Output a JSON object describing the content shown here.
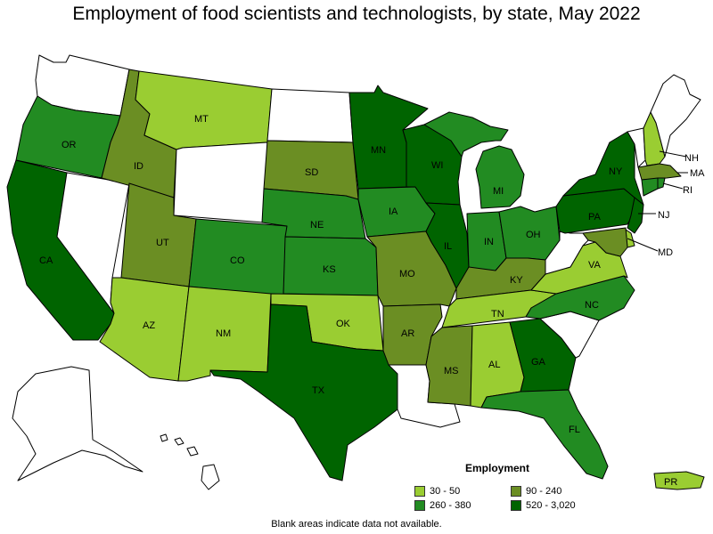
{
  "title": "Employment of food scientists and technologists, by state, May 2022",
  "footnote": "Blank areas indicate data not available.",
  "legend": {
    "title": "Employment",
    "items": [
      {
        "label": "30 - 50",
        "color": "#9acd32"
      },
      {
        "label": "90 - 240",
        "color": "#6b8e23"
      },
      {
        "label": "260 - 380",
        "color": "#228b22"
      },
      {
        "label": "520 - 3,020",
        "color": "#006400"
      }
    ]
  },
  "colors": {
    "c1": "#9acd32",
    "c2": "#6b8e23",
    "c3": "#228b22",
    "c4": "#006400",
    "blank": "#ffffff"
  },
  "states": [
    {
      "abbr": "WA",
      "label": "",
      "class": "blank"
    },
    {
      "abbr": "OR",
      "label": "OR",
      "class": "c3"
    },
    {
      "abbr": "CA",
      "label": "CA",
      "class": "c4"
    },
    {
      "abbr": "NV",
      "label": "",
      "class": "blank"
    },
    {
      "abbr": "ID",
      "label": "ID",
      "class": "c2"
    },
    {
      "abbr": "MT",
      "label": "MT",
      "class": "c1"
    },
    {
      "abbr": "WY",
      "label": "",
      "class": "blank"
    },
    {
      "abbr": "UT",
      "label": "UT",
      "class": "c2"
    },
    {
      "abbr": "AZ",
      "label": "AZ",
      "class": "c1"
    },
    {
      "abbr": "CO",
      "label": "CO",
      "class": "c3"
    },
    {
      "abbr": "NM",
      "label": "NM",
      "class": "c1"
    },
    {
      "abbr": "ND",
      "label": "",
      "class": "blank"
    },
    {
      "abbr": "SD",
      "label": "SD",
      "class": "c2"
    },
    {
      "abbr": "NE",
      "label": "NE",
      "class": "c3"
    },
    {
      "abbr": "KS",
      "label": "KS",
      "class": "c3"
    },
    {
      "abbr": "OK",
      "label": "OK",
      "class": "c1"
    },
    {
      "abbr": "TX",
      "label": "TX",
      "class": "c4"
    },
    {
      "abbr": "MN",
      "label": "MN",
      "class": "c4"
    },
    {
      "abbr": "IA",
      "label": "IA",
      "class": "c3"
    },
    {
      "abbr": "MO",
      "label": "MO",
      "class": "c2"
    },
    {
      "abbr": "AR",
      "label": "AR",
      "class": "c2"
    },
    {
      "abbr": "LA",
      "label": "",
      "class": "blank"
    },
    {
      "abbr": "WI",
      "label": "WI",
      "class": "c4"
    },
    {
      "abbr": "IL",
      "label": "IL",
      "class": "c4"
    },
    {
      "abbr": "MI",
      "label": "MI",
      "class": "c3"
    },
    {
      "abbr": "IN",
      "label": "IN",
      "class": "c3"
    },
    {
      "abbr": "OH",
      "label": "OH",
      "class": "c3"
    },
    {
      "abbr": "KY",
      "label": "KY",
      "class": "c2"
    },
    {
      "abbr": "TN",
      "label": "TN",
      "class": "c1"
    },
    {
      "abbr": "MS",
      "label": "MS",
      "class": "c2"
    },
    {
      "abbr": "AL",
      "label": "AL",
      "class": "c1"
    },
    {
      "abbr": "GA",
      "label": "GA",
      "class": "c4"
    },
    {
      "abbr": "FL",
      "label": "FL",
      "class": "c3"
    },
    {
      "abbr": "SC",
      "label": "",
      "class": "blank"
    },
    {
      "abbr": "NC",
      "label": "NC",
      "class": "c3"
    },
    {
      "abbr": "VA",
      "label": "VA",
      "class": "c1"
    },
    {
      "abbr": "WV",
      "label": "",
      "class": "blank"
    },
    {
      "abbr": "PA",
      "label": "PA",
      "class": "c4"
    },
    {
      "abbr": "NY",
      "label": "NY",
      "class": "c4"
    },
    {
      "abbr": "VT",
      "label": "",
      "class": "blank"
    },
    {
      "abbr": "NH",
      "label": "NH",
      "class": "c1"
    },
    {
      "abbr": "ME",
      "label": "",
      "class": "blank"
    },
    {
      "abbr": "MA",
      "label": "MA",
      "class": "c2"
    },
    {
      "abbr": "RI",
      "label": "RI",
      "class": "c3"
    },
    {
      "abbr": "CT",
      "label": "",
      "class": "c3"
    },
    {
      "abbr": "NJ",
      "label": "NJ",
      "class": "c4"
    },
    {
      "abbr": "DE",
      "label": "",
      "class": "c1"
    },
    {
      "abbr": "MD",
      "label": "MD",
      "class": "c2"
    },
    {
      "abbr": "AK",
      "label": "",
      "class": "blank"
    },
    {
      "abbr": "HI",
      "label": "",
      "class": "blank"
    },
    {
      "abbr": "PR",
      "label": "PR",
      "class": "c1"
    }
  ]
}
